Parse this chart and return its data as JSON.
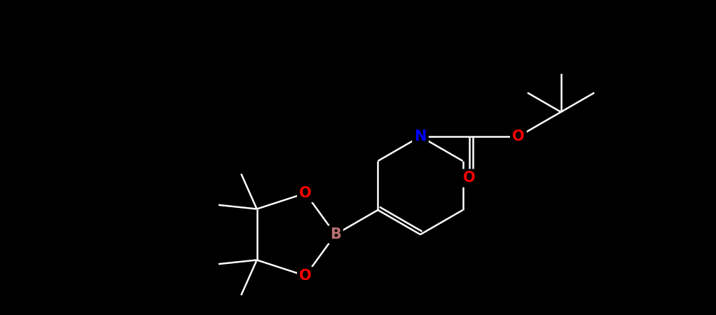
{
  "background_color": "#000000",
  "bond_color": "#ffffff",
  "bond_width": 1.8,
  "atom_colors": {
    "N": "#0000ff",
    "O": "#ff0000",
    "B": "#b87070"
  },
  "fig_width": 10.22,
  "fig_height": 4.5,
  "scale": 1.0
}
